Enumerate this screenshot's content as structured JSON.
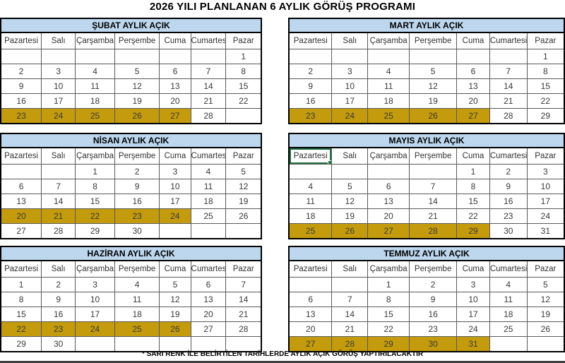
{
  "title": "2026 YILI PLANLANAN 6 AYLIK GÖRÜŞ PROGRAMI",
  "footnote": "* SARI RENK İLE BELİRTİLEN TARİHLERDE AYLIK AÇIK GÖRÜŞ YAPTIRILACAKTIR",
  "colors": {
    "month_header_bg": "#BDD7EE",
    "highlight": "#C39B0C",
    "selection_border": "#217346"
  },
  "day_headers": [
    "Pazartesi",
    "Salı",
    "Çarşamba",
    "Perşembe",
    "Cuma",
    "Cumartesi",
    "Pazar"
  ],
  "months": [
    {
      "name": "ŞUBAT AYLIK AÇIK",
      "weeks": [
        [
          "",
          "",
          "",
          "",
          "",
          "",
          "1"
        ],
        [
          "2",
          "3",
          "4",
          "5",
          "6",
          "7",
          "8"
        ],
        [
          "9",
          "10",
          "11",
          "12",
          "13",
          "14",
          "15"
        ],
        [
          "16",
          "17",
          "18",
          "19",
          "20",
          "21",
          "22"
        ],
        [
          "23",
          "24",
          "25",
          "26",
          "27",
          "28",
          ""
        ]
      ],
      "highlight_row": 4,
      "highlight_cols": [
        0,
        1,
        2,
        3,
        4
      ]
    },
    {
      "name": "MART AYLIK AÇIK",
      "weeks": [
        [
          "",
          "",
          "",
          "",
          "",
          "",
          "1"
        ],
        [
          "2",
          "3",
          "4",
          "5",
          "6",
          "7",
          "8"
        ],
        [
          "9",
          "10",
          "11",
          "12",
          "13",
          "14",
          "15"
        ],
        [
          "16",
          "17",
          "18",
          "19",
          "20",
          "21",
          "22"
        ],
        [
          "23",
          "24",
          "25",
          "26",
          "27",
          "28",
          "29"
        ]
      ],
      "highlight_row": 4,
      "highlight_cols": [
        0,
        1,
        2,
        3,
        4
      ]
    },
    {
      "name": "NİSAN AYLIK AÇIK",
      "weeks": [
        [
          "",
          "",
          "1",
          "2",
          "3",
          "4",
          "5"
        ],
        [
          "6",
          "7",
          "8",
          "9",
          "10",
          "11",
          "12"
        ],
        [
          "13",
          "14",
          "15",
          "16",
          "17",
          "18",
          "19"
        ],
        [
          "20",
          "21",
          "22",
          "23",
          "24",
          "25",
          "26"
        ],
        [
          "27",
          "28",
          "29",
          "30",
          "",
          "",
          ""
        ]
      ],
      "highlight_row": 3,
      "highlight_cols": [
        0,
        1,
        2,
        3,
        4
      ]
    },
    {
      "name": "MAYIS AYLIK AÇIK",
      "selected_day_header_col": 0,
      "weeks": [
        [
          "",
          "",
          "",
          "",
          "1",
          "2",
          "3"
        ],
        [
          "4",
          "5",
          "6",
          "7",
          "8",
          "9",
          "10"
        ],
        [
          "11",
          "12",
          "13",
          "14",
          "15",
          "16",
          "17"
        ],
        [
          "18",
          "19",
          "20",
          "21",
          "22",
          "23",
          "24"
        ],
        [
          "25",
          "26",
          "27",
          "28",
          "29",
          "30",
          "31"
        ]
      ],
      "highlight_row": 4,
      "highlight_cols": [
        0,
        1,
        2,
        3,
        4
      ]
    },
    {
      "name": "HAZİRAN AYLIK AÇIK",
      "weeks": [
        [
          "1",
          "2",
          "3",
          "4",
          "5",
          "6",
          "7"
        ],
        [
          "8",
          "9",
          "10",
          "11",
          "12",
          "13",
          "14"
        ],
        [
          "15",
          "16",
          "17",
          "18",
          "19",
          "20",
          "21"
        ],
        [
          "22",
          "23",
          "24",
          "25",
          "26",
          "27",
          "28"
        ],
        [
          "29",
          "30",
          "",
          "",
          "",
          "",
          ""
        ]
      ],
      "highlight_row": 3,
      "highlight_cols": [
        0,
        1,
        2,
        3,
        4
      ]
    },
    {
      "name": "TEMMUZ AYLIK AÇIK",
      "weeks": [
        [
          "",
          "",
          "1",
          "2",
          "3",
          "4",
          "5"
        ],
        [
          "6",
          "7",
          "8",
          "9",
          "10",
          "11",
          "12"
        ],
        [
          "13",
          "14",
          "15",
          "16",
          "17",
          "18",
          "19"
        ],
        [
          "20",
          "21",
          "22",
          "23",
          "24",
          "25",
          "26"
        ],
        [
          "27",
          "28",
          "29",
          "30",
          "31",
          "",
          ""
        ]
      ],
      "highlight_row": 4,
      "highlight_cols": [
        0,
        1,
        2,
        3,
        4
      ]
    }
  ]
}
